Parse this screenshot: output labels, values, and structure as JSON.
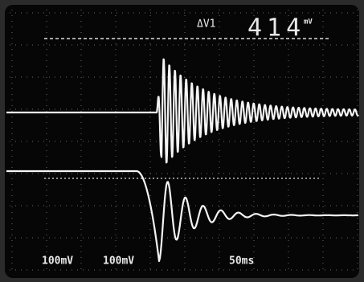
{
  "readout": {
    "label": "ΔV1",
    "value": 414,
    "unit": "mV"
  },
  "channels": [
    {
      "scale": "100mV"
    },
    {
      "scale": "100mV"
    }
  ],
  "timebase": "50ms"
}
